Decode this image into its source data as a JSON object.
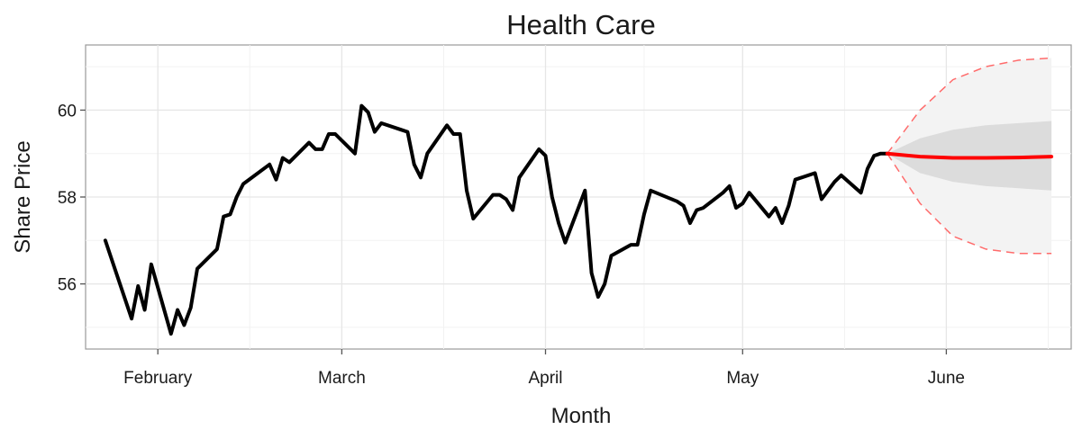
{
  "chart_data": {
    "type": "line",
    "title": "Health Care",
    "xlabel": "Month",
    "ylabel": "Share Price",
    "grid": true,
    "legend": "none",
    "x_ticks": [
      {
        "label": "February",
        "x": "2014-02-01"
      },
      {
        "label": "March",
        "x": "2014-03-01"
      },
      {
        "label": "April",
        "x": "2014-04-01"
      },
      {
        "label": "May",
        "x": "2014-05-01"
      },
      {
        "label": "June",
        "x": "2014-06-01"
      }
    ],
    "xlim": [
      "2014-01-21",
      "2014-06-20"
    ],
    "y_ticks": [
      56,
      58,
      60
    ],
    "ylim": [
      54.5,
      61.5
    ],
    "colors": {
      "history": "#000000",
      "forecast": "#ff0000",
      "interval_80": "#dcdcdc",
      "interval_95": "#f3f3f3",
      "interval_95_bounds": "#ff6b6b"
    },
    "series": [
      {
        "x": [
          "2014-01-24",
          "2014-01-27",
          "2014-01-28",
          "2014-01-29",
          "2014-01-30",
          "2014-01-31",
          "2014-02-03",
          "2014-02-04",
          "2014-02-05",
          "2014-02-06",
          "2014-02-07",
          "2014-02-10",
          "2014-02-11",
          "2014-02-12",
          "2014-02-13",
          "2014-02-14",
          "2014-02-18",
          "2014-02-19",
          "2014-02-20",
          "2014-02-21",
          "2014-02-24",
          "2014-02-25",
          "2014-02-26",
          "2014-02-27",
          "2014-02-28",
          "2014-03-03",
          "2014-03-04",
          "2014-03-05",
          "2014-03-06",
          "2014-03-07",
          "2014-03-10",
          "2014-03-11",
          "2014-03-12",
          "2014-03-13",
          "2014-03-14",
          "2014-03-17",
          "2014-03-18",
          "2014-03-19",
          "2014-03-20",
          "2014-03-21",
          "2014-03-24",
          "2014-03-25",
          "2014-03-26",
          "2014-03-27",
          "2014-03-28",
          "2014-03-31",
          "2014-04-01",
          "2014-04-02",
          "2014-04-03",
          "2014-04-04",
          "2014-04-07",
          "2014-04-08",
          "2014-04-09",
          "2014-04-10",
          "2014-04-11",
          "2014-04-14",
          "2014-04-15",
          "2014-04-16",
          "2014-04-17",
          "2014-04-21",
          "2014-04-22",
          "2014-04-23",
          "2014-04-24",
          "2014-04-25",
          "2014-04-28",
          "2014-04-29",
          "2014-04-30",
          "2014-05-01",
          "2014-05-02",
          "2014-05-05",
          "2014-05-06",
          "2014-05-07",
          "2014-05-08",
          "2014-05-09",
          "2014-05-12",
          "2014-05-13",
          "2014-05-14",
          "2014-05-15",
          "2014-05-16",
          "2014-05-19",
          "2014-05-20",
          "2014-05-21",
          "2014-05-22",
          "2014-05-23"
        ],
        "values": [
          57.0,
          55.65,
          55.2,
          55.95,
          55.4,
          56.45,
          54.85,
          55.4,
          55.05,
          55.45,
          56.35,
          56.8,
          57.55,
          57.6,
          58.0,
          58.3,
          58.75,
          58.4,
          58.9,
          58.8,
          59.25,
          59.1,
          59.1,
          59.45,
          59.45,
          59.0,
          60.1,
          59.95,
          59.5,
          59.7,
          59.55,
          59.5,
          58.75,
          58.45,
          59.0,
          59.65,
          59.45,
          59.45,
          58.15,
          57.5,
          58.05,
          58.05,
          57.95,
          57.7,
          58.45,
          59.1,
          58.95,
          58.0,
          57.4,
          56.95,
          58.15,
          56.25,
          55.7,
          56.0,
          56.65,
          56.9,
          56.9,
          57.6,
          58.15,
          57.9,
          57.8,
          57.4,
          57.7,
          57.75,
          58.1,
          58.25,
          57.75,
          57.85,
          58.1,
          57.55,
          57.75,
          57.4,
          57.8,
          58.4,
          58.55,
          57.95,
          58.15,
          58.35,
          58.5,
          58.1,
          58.65,
          58.95,
          59.0,
          59.0
        ],
        "style": "history"
      },
      {
        "x": [
          "2014-05-23",
          "2014-05-28",
          "2014-06-02",
          "2014-06-07",
          "2014-06-12",
          "2014-06-17"
        ],
        "values": [
          59.0,
          58.93,
          58.9,
          58.9,
          58.91,
          58.93
        ],
        "lower_80": [
          59.0,
          58.55,
          58.35,
          58.25,
          58.2,
          58.15
        ],
        "upper_80": [
          59.0,
          59.35,
          59.55,
          59.65,
          59.7,
          59.75
        ],
        "lower_95": [
          59.0,
          57.85,
          57.1,
          56.8,
          56.7,
          56.7
        ],
        "upper_95": [
          59.0,
          60.0,
          60.7,
          61.0,
          61.15,
          61.2
        ],
        "style": "forecast"
      }
    ]
  }
}
